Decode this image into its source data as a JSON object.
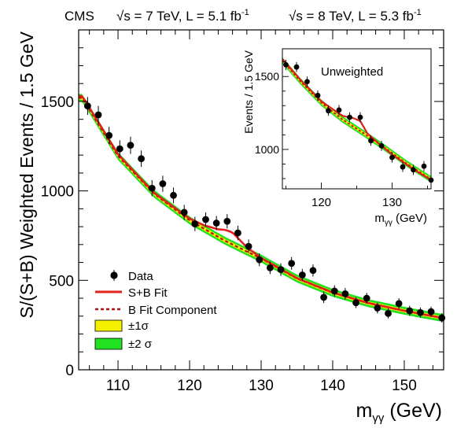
{
  "chart_data": [
    {
      "type": "scatter",
      "header": {
        "experiment": "CMS",
        "left_energy": "√s = 7 TeV, L = 5.1 fb",
        "left_sup": "-1",
        "right_energy": "√s = 8 TeV, L = 5.3 fb",
        "right_sup": "-1"
      },
      "title": "",
      "xlabel_main": "m",
      "xlabel_sub": "γγ",
      "xlabel_unit": " (GeV)",
      "ylabel": "S/(S+B) Weighted Events / 1.5 GeV",
      "xlim": [
        104.5,
        155.5
      ],
      "ylim": [
        0,
        1900
      ],
      "xticks": [
        110,
        120,
        130,
        140,
        150
      ],
      "yticks": [
        0,
        500,
        1000,
        1500
      ],
      "legend": {
        "position": "bottom-left",
        "entries": [
          {
            "label": "Data",
            "kind": "marker"
          },
          {
            "label": "S+B Fit",
            "kind": "solid-line"
          },
          {
            "label": "B Fit Component",
            "kind": "dashed-line"
          },
          {
            "label": "±1σ",
            "kind": "box-1sigma"
          },
          {
            "label": "±2 σ",
            "kind": "box-2sigma"
          }
        ]
      },
      "colors": {
        "data": "#000000",
        "sb_fit": "#e0201b",
        "b_fit": "#b01010",
        "band_1sigma": "#f5f000",
        "band_2sigma": "#22e022"
      },
      "series": [
        {
          "name": "Data",
          "x": [
            105.75,
            107.25,
            108.75,
            110.25,
            111.75,
            113.25,
            114.75,
            116.25,
            117.75,
            119.25,
            120.75,
            122.25,
            123.75,
            125.25,
            126.75,
            128.25,
            129.75,
            131.25,
            132.75,
            134.25,
            135.75,
            137.25,
            138.75,
            140.25,
            141.75,
            143.25,
            144.75,
            146.25,
            147.75,
            149.25,
            150.75,
            152.25,
            153.75,
            155.25
          ],
          "y": [
            1475,
            1425,
            1310,
            1235,
            1255,
            1180,
            1015,
            1040,
            975,
            880,
            815,
            840,
            820,
            830,
            765,
            690,
            615,
            570,
            560,
            595,
            530,
            555,
            405,
            440,
            425,
            375,
            400,
            345,
            315,
            370,
            330,
            320,
            325,
            290
          ],
          "yerr": [
            50,
            50,
            48,
            48,
            48,
            46,
            45,
            45,
            44,
            42,
            40,
            40,
            40,
            40,
            40,
            38,
            36,
            35,
            35,
            35,
            34,
            34,
            32,
            32,
            32,
            30,
            30,
            30,
            28,
            30,
            28,
            28,
            28,
            26
          ]
        },
        {
          "name": "S+B Fit",
          "x": [
            105,
            110,
            115,
            120,
            122,
            124,
            125,
            126,
            127,
            128,
            130,
            135,
            140,
            145,
            150,
            155
          ],
          "y": [
            1530,
            1205,
            990,
            845,
            808,
            785,
            782,
            768,
            726,
            685,
            625,
            512,
            432,
            373,
            330,
            292
          ]
        },
        {
          "name": "B Fit Component",
          "x": [
            105,
            110,
            115,
            120,
            125,
            130,
            135,
            140,
            145,
            150,
            155
          ],
          "y": [
            1520,
            1195,
            985,
            835,
            720,
            622,
            510,
            430,
            372,
            330,
            292
          ]
        }
      ]
    },
    {
      "type": "scatter",
      "title": "Unweighted",
      "xlabel_main": "m",
      "xlabel_sub": "γγ",
      "xlabel_unit": " (GeV)",
      "ylabel": "Events / 1.5 GeV",
      "xlim": [
        114.5,
        135.5
      ],
      "ylim": [
        730,
        1690
      ],
      "xticks": [
        120,
        130
      ],
      "yticks": [
        1000,
        1500
      ],
      "series": [
        {
          "name": "Data",
          "x": [
            115.0,
            116.5,
            118.0,
            119.5,
            121.0,
            122.5,
            124.0,
            125.5,
            127.0,
            128.5,
            130.0,
            131.5,
            133.0,
            134.5,
            135.5
          ],
          "y": [
            1580,
            1565,
            1465,
            1370,
            1265,
            1270,
            1220,
            1220,
            1060,
            1025,
            945,
            880,
            860,
            885,
            790
          ]
        },
        {
          "name": "S+B Fit",
          "x": [
            114.5,
            117,
            120,
            123,
            124.5,
            125.5,
            126.5,
            128,
            130,
            133,
            135.5
          ],
          "y": [
            1620,
            1480,
            1330,
            1230,
            1215,
            1195,
            1110,
            1045,
            965,
            865,
            790
          ]
        },
        {
          "name": "B Fit Component",
          "x": [
            114.5,
            117,
            120,
            123,
            126,
            129,
            132,
            135.5
          ],
          "y": [
            1610,
            1470,
            1320,
            1205,
            1110,
            1010,
            905,
            795
          ]
        }
      ]
    }
  ]
}
